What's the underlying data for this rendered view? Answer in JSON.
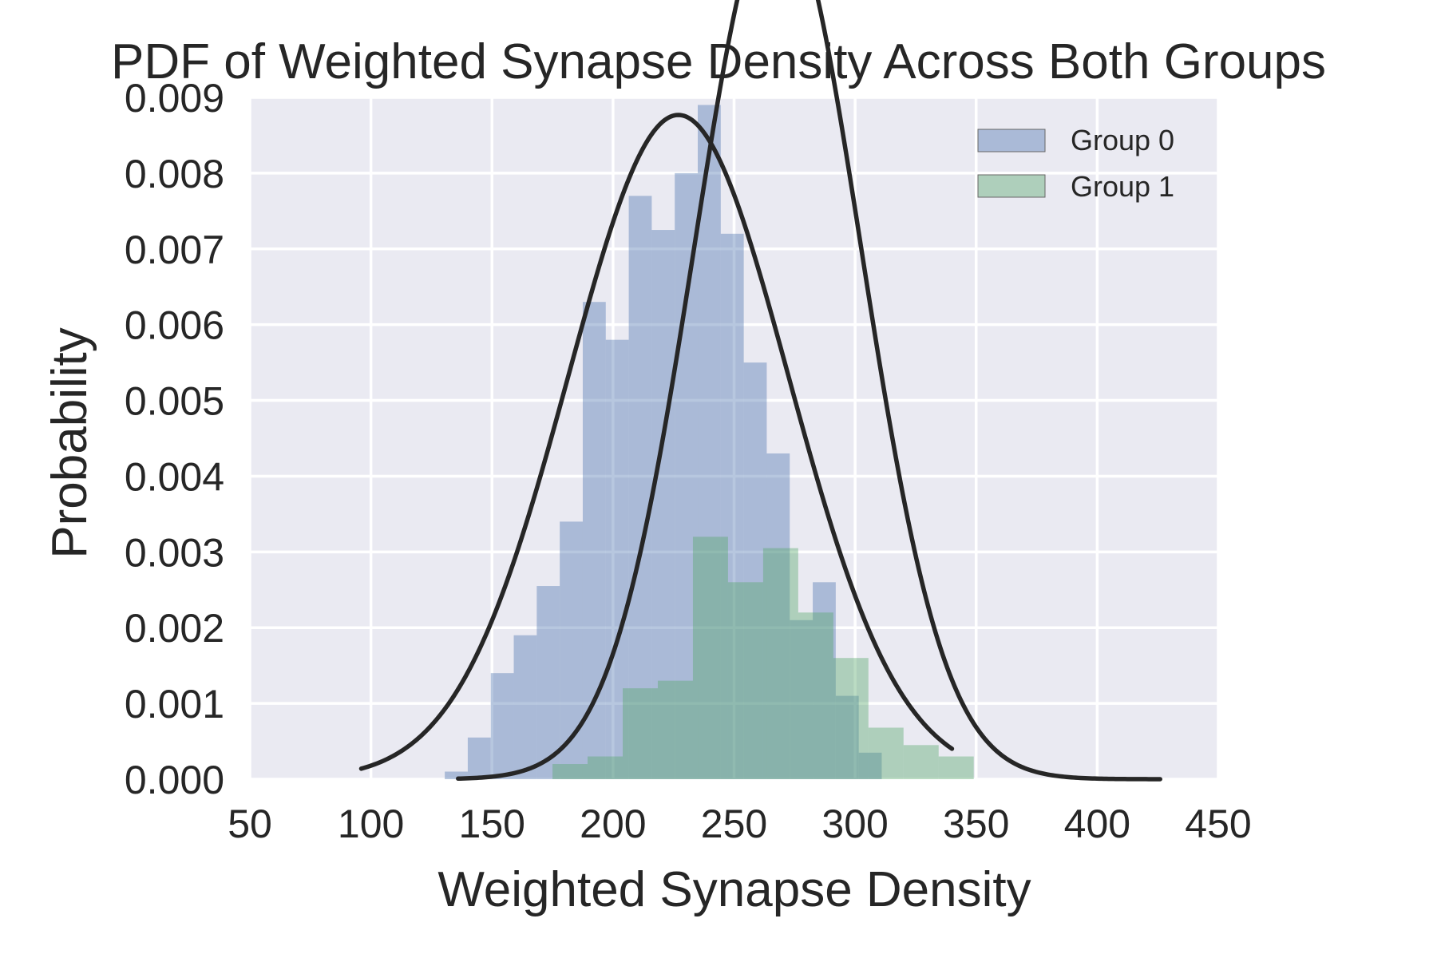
{
  "chart_data": {
    "type": "bar",
    "title": "PDF of Weighted Synapse Density Across Both Groups",
    "xlabel": "Weighted Synapse Density",
    "ylabel": "Probability",
    "xlim": [
      50,
      450
    ],
    "ylim": [
      0,
      0.009
    ],
    "x_ticks": [
      50,
      100,
      150,
      200,
      250,
      300,
      350,
      400,
      450
    ],
    "y_ticks": [
      "0.000",
      "0.001",
      "0.002",
      "0.003",
      "0.004",
      "0.005",
      "0.006",
      "0.007",
      "0.008",
      "0.009"
    ],
    "grid": true,
    "legend_position": "top-right",
    "series": [
      {
        "name": "Group 0",
        "color": "#4c72b0",
        "histogram": {
          "bin_start": 130.5,
          "bin_width": 9.5,
          "values": [
            0.0001,
            0.00055,
            0.0014,
            0.0019,
            0.00255,
            0.0034,
            0.0063,
            0.0058,
            0.0077,
            0.00725,
            0.008,
            0.0089,
            0.0072,
            0.0055,
            0.0043,
            0.0021,
            0.0026,
            0.0011,
            0.00035,
            0.0
          ]
        },
        "pdf_curve": {
          "mean": 227,
          "std": 45.5,
          "x_range": [
            96,
            340
          ]
        }
      },
      {
        "name": "Group 1",
        "color": "#55a868",
        "histogram": {
          "bin_start": 175,
          "bin_width": 14.5,
          "values": [
            0.0002,
            0.0003,
            0.0012,
            0.0013,
            0.0032,
            0.0026,
            0.00305,
            0.0022,
            0.0016,
            0.00068,
            0.00045,
            0.0003
          ]
        },
        "pdf_curve": {
          "mean": 268,
          "std": 34.5,
          "x_range": [
            136,
            426
          ]
        }
      }
    ]
  }
}
